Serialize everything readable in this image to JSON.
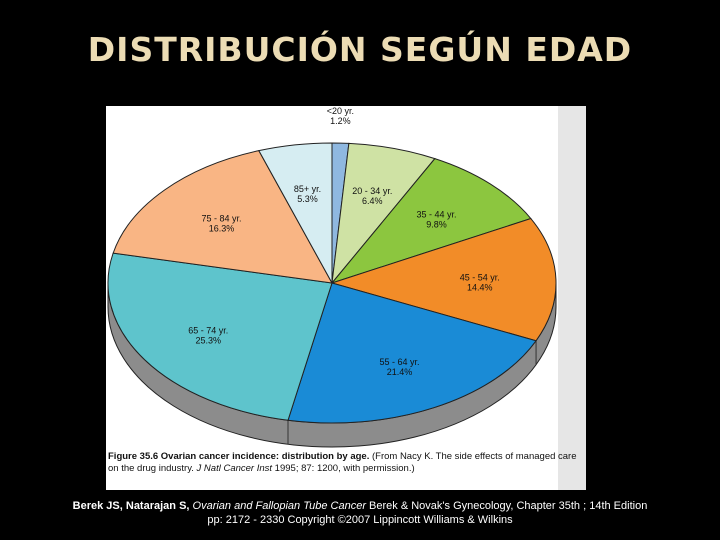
{
  "title": "DISTRIBUCIÓN SEGÚN EDAD",
  "chart_data": {
    "type": "pie",
    "title": "",
    "slices": [
      {
        "label": "<20 yr.",
        "value_label": "1.2%",
        "value": 1.2,
        "color": "#8fb8e0"
      },
      {
        "label": "20 - 34 yr.",
        "value_label": "6.4%",
        "value": 6.4,
        "color": "#cfe2a4"
      },
      {
        "label": "35 - 44 yr.",
        "value_label": "9.8%",
        "value": 9.8,
        "color": "#8cc63f"
      },
      {
        "label": "45 - 54 yr.",
        "value_label": "14.4%",
        "value": 14.4,
        "color": "#f28c28"
      },
      {
        "label": "55 - 64 yr.",
        "value_label": "21.4%",
        "value": 21.4,
        "color": "#1a8bd6"
      },
      {
        "label": "65 - 74 yr.",
        "value_label": "25.3%",
        "value": 25.3,
        "color": "#5ec4cc"
      },
      {
        "label": "75 - 84 yr.",
        "value_label": "16.3%",
        "value": 16.3,
        "color": "#f9b584"
      },
      {
        "label": "85+ yr.",
        "value_label": "5.3%",
        "value": 5.3,
        "color": "#d6edf2"
      }
    ]
  },
  "caption": {
    "figure": "Figure 35.6 Ovarian cancer incidence: distribution by age.",
    "text1": " (From Nacy K. The side effects of managed care on the drug industry. ",
    "journal": "J Natl Cancer Inst",
    "text2": " 1995; 87: 1200, with permission.)"
  },
  "reference": {
    "authors": "Berek JS, Natarajan  S,",
    "book": "Ovarian and Fallopian Tube Cancer",
    "rest": "Berek & Novak's Gynecology, Chapter 35th ; 14th Edition",
    "line2": "pp: 2172 - 2330 Copyright ©2007 Lippincott Williams & Wilkins"
  }
}
